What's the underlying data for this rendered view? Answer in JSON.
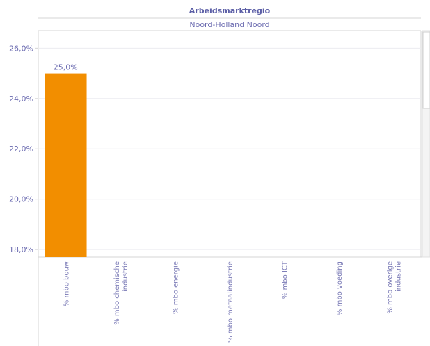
{
  "header": {
    "column_title": "Arbeidsmarktregio",
    "region": "Noord-Holland Noord"
  },
  "colors": {
    "bar": "#f28e00",
    "text": "#6b6bb0",
    "grid": "#ececf0",
    "border": "#d4d4d4"
  },
  "chart_data": {
    "type": "bar",
    "title": "",
    "xlabel": "",
    "ylabel": "",
    "categories": [
      [
        "% mbo bouw"
      ],
      [
        "% mbo chemische",
        "industrie"
      ],
      [
        "% mbo energie"
      ],
      [
        "% mbo metaalindustrie"
      ],
      [
        "% mbo ICT"
      ],
      [
        "% mbo voeding"
      ],
      [
        "% mbo overige",
        "industrie"
      ]
    ],
    "values": [
      25.0,
      null,
      null,
      null,
      null,
      null,
      null
    ],
    "data_labels": [
      "25,0%",
      "",
      "",
      "",
      "",
      "",
      ""
    ],
    "ylim": [
      17.7,
      26.7
    ],
    "yticks": [
      18,
      20,
      22,
      24,
      26
    ],
    "ytick_labels": [
      "18,0%",
      "20,0%",
      "22,0%",
      "24,0%",
      "26,0%"
    ],
    "grid": true,
    "legend": "none"
  }
}
